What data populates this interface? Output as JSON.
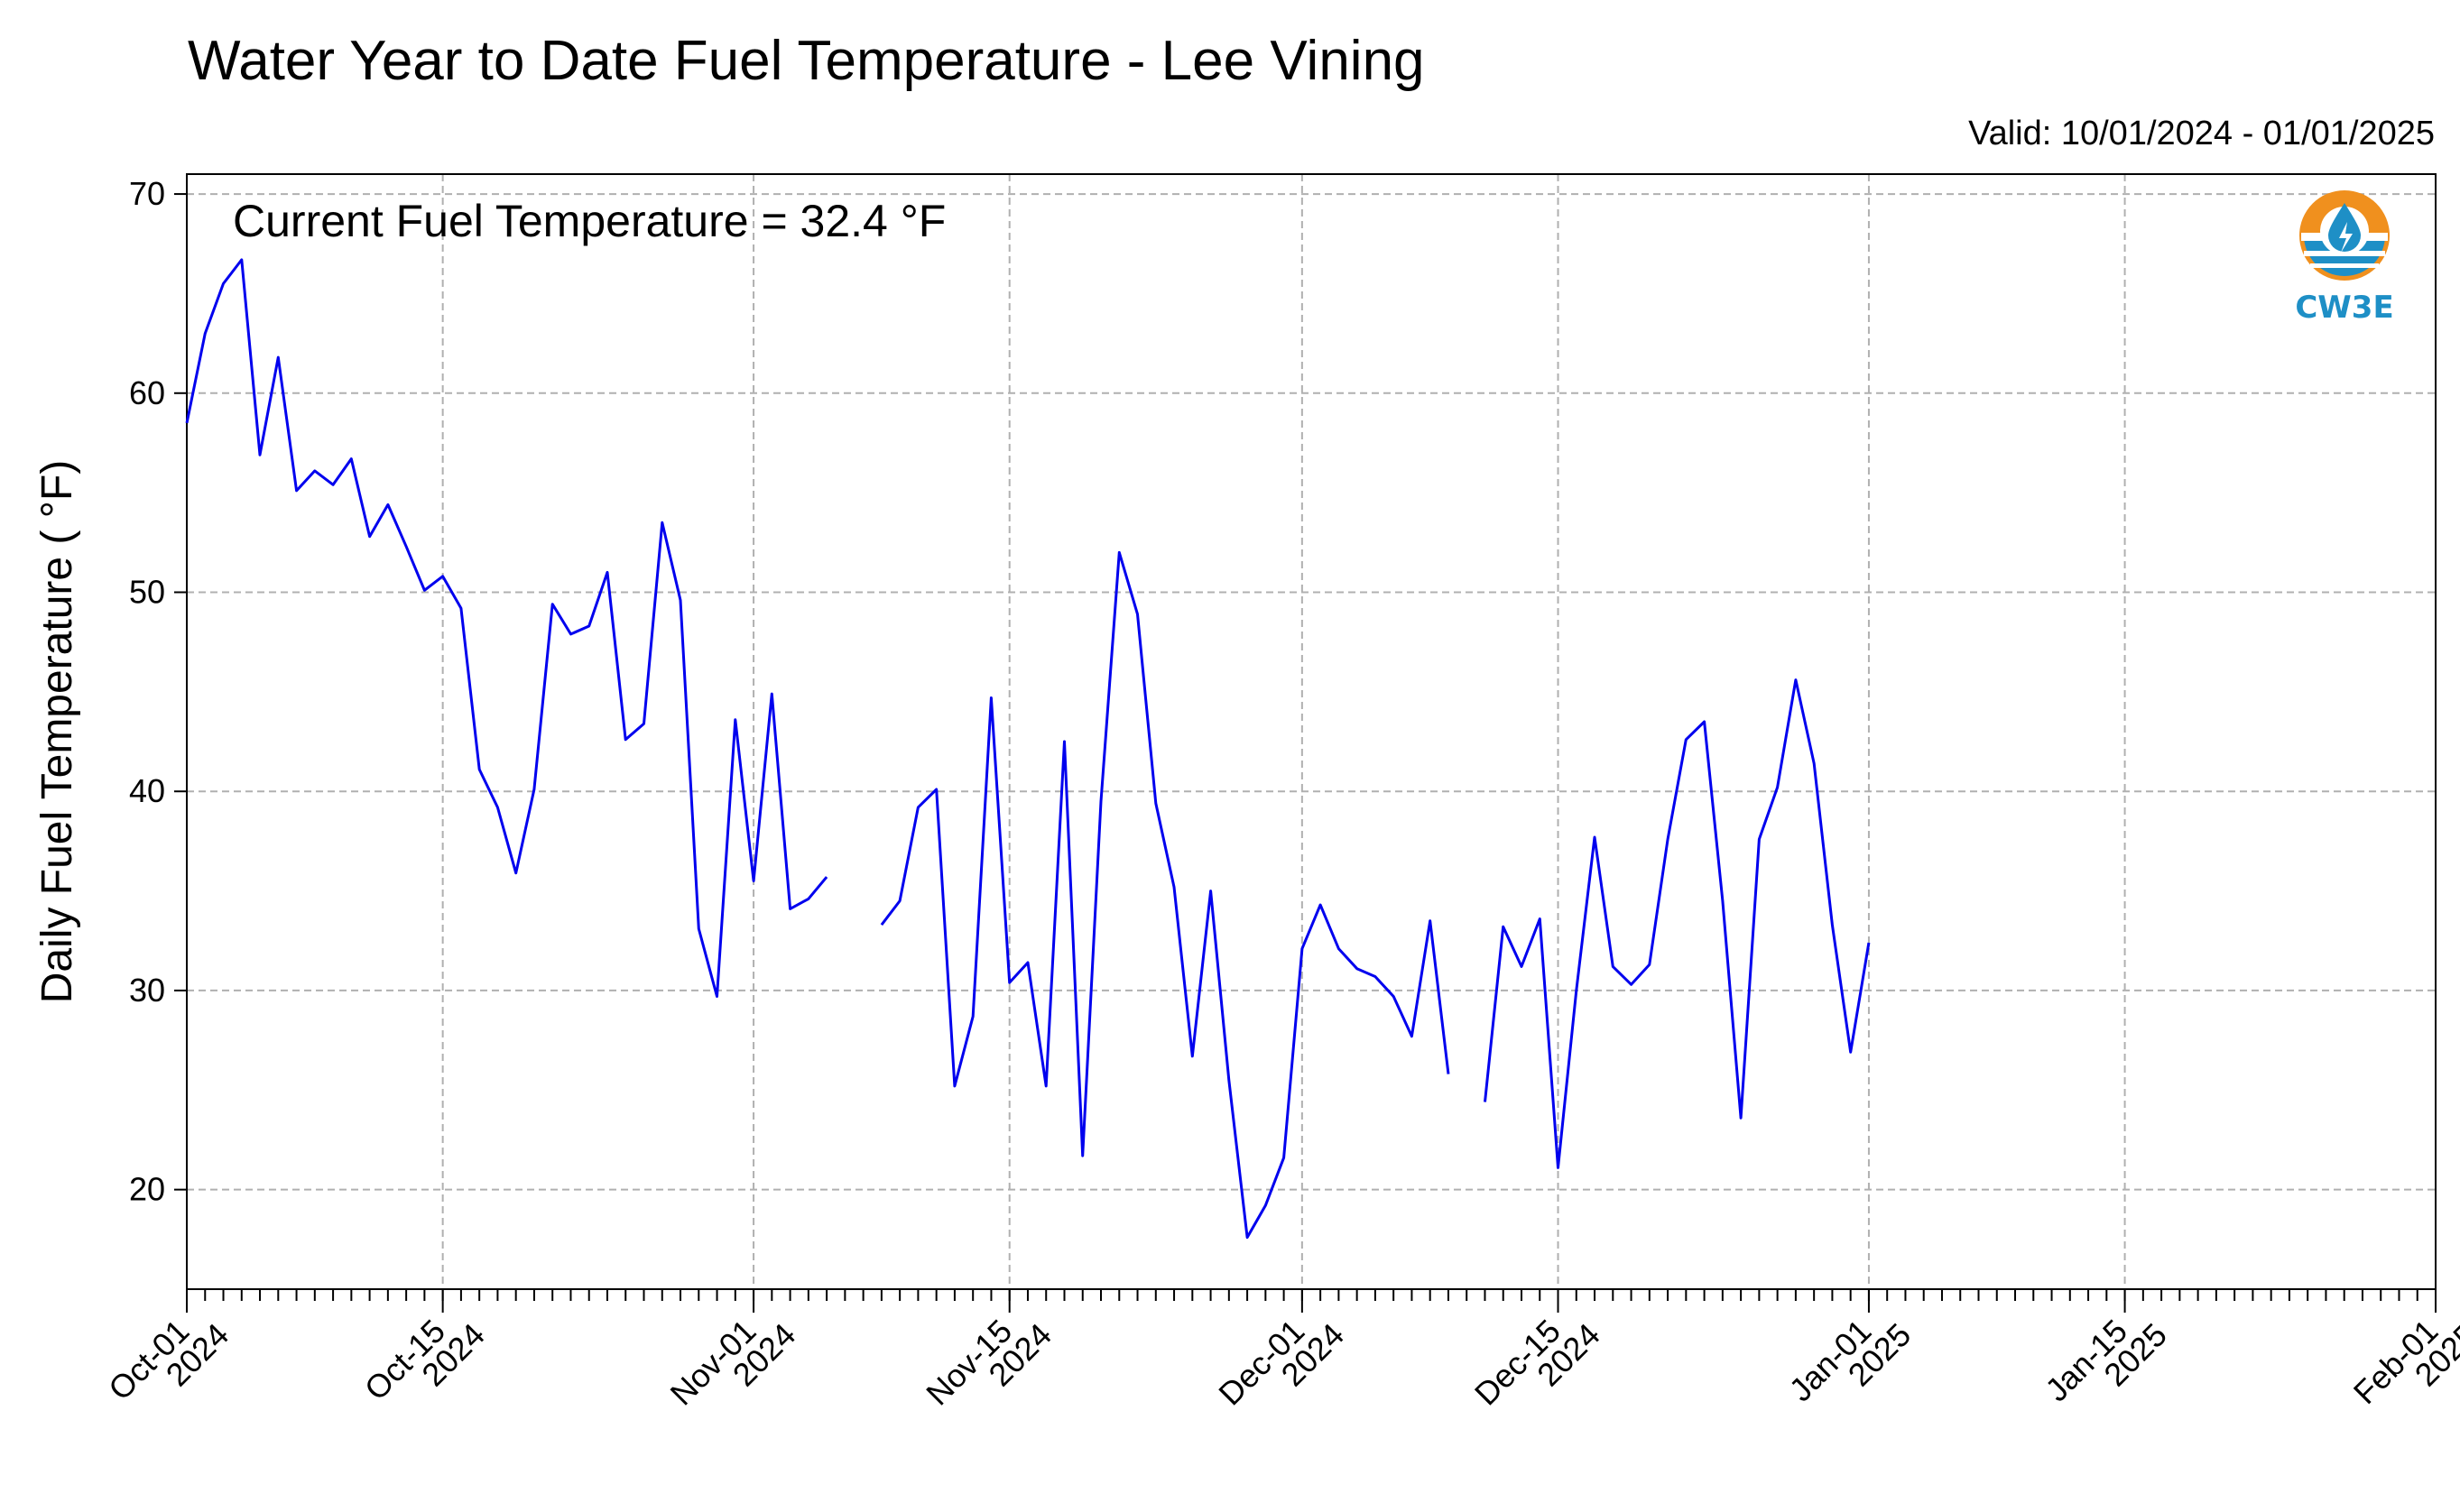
{
  "chart_data": {
    "type": "line",
    "title": "Water Year to Date Fuel Temperature - Lee Vining",
    "subtitle": "Valid: 10/01/2024 - 01/01/2025",
    "annotation": "Current Fuel Temperature = 32.4  °F",
    "ylabel": "Daily Fuel Temperature ( °F)",
    "xlabel": "",
    "ylim": [
      15,
      71
    ],
    "yticks": [
      20,
      30,
      40,
      50,
      60,
      70
    ],
    "xlim": [
      "2024-10-01",
      "2025-02-01"
    ],
    "xticks": [
      {
        "date": "2024-10-01",
        "label1": "Oct-01",
        "label2": "2024"
      },
      {
        "date": "2024-10-15",
        "label1": "Oct-15",
        "label2": "2024"
      },
      {
        "date": "2024-11-01",
        "label1": "Nov-01",
        "label2": "2024"
      },
      {
        "date": "2024-11-15",
        "label1": "Nov-15",
        "label2": "2024"
      },
      {
        "date": "2024-12-01",
        "label1": "Dec-01",
        "label2": "2024"
      },
      {
        "date": "2024-12-15",
        "label1": "Dec-15",
        "label2": "2024"
      },
      {
        "date": "2025-01-01",
        "label1": "Jan-01",
        "label2": "2025"
      },
      {
        "date": "2025-01-15",
        "label1": "Jan-15",
        "label2": "2025"
      },
      {
        "date": "2025-02-01",
        "label1": "Feb-01",
        "label2": "2025"
      }
    ],
    "grid": true,
    "logo": "cw3e-logo",
    "logo_text": "CW3E",
    "series": [
      {
        "color": "#0000ee",
        "points": [
          [
            "2024-10-01",
            58.5
          ],
          [
            "2024-10-02",
            63.0
          ],
          [
            "2024-10-03",
            65.5
          ],
          [
            "2024-10-04",
            66.7
          ],
          [
            "2024-10-05",
            56.9
          ],
          [
            "2024-10-06",
            61.8
          ],
          [
            "2024-10-07",
            55.1
          ],
          [
            "2024-10-08",
            56.1
          ],
          [
            "2024-10-09",
            55.4
          ],
          [
            "2024-10-10",
            56.7
          ],
          [
            "2024-10-11",
            52.8
          ],
          [
            "2024-10-12",
            54.4
          ],
          [
            "2024-10-13",
            52.3
          ],
          [
            "2024-10-14",
            50.1
          ],
          [
            "2024-10-15",
            50.8
          ],
          [
            "2024-10-16",
            49.2
          ],
          [
            "2024-10-17",
            41.1
          ],
          [
            "2024-10-18",
            39.2
          ],
          [
            "2024-10-19",
            35.9
          ],
          [
            "2024-10-20",
            40.1
          ],
          [
            "2024-10-21",
            49.4
          ],
          [
            "2024-10-22",
            47.9
          ],
          [
            "2024-10-23",
            48.3
          ],
          [
            "2024-10-24",
            51.0
          ],
          [
            "2024-10-25",
            42.6
          ],
          [
            "2024-10-26",
            43.4
          ],
          [
            "2024-10-27",
            53.5
          ],
          [
            "2024-10-28",
            49.6
          ],
          [
            "2024-10-29",
            33.1
          ],
          [
            "2024-10-30",
            29.7
          ],
          [
            "2024-10-31",
            43.6
          ],
          [
            "2024-11-01",
            35.5
          ],
          [
            "2024-11-02",
            44.9
          ],
          [
            "2024-11-03",
            34.1
          ],
          [
            "2024-11-04",
            34.6
          ],
          [
            "2024-11-05",
            35.7
          ],
          [
            "2024-11-06",
            null
          ],
          [
            "2024-11-07",
            null
          ],
          [
            "2024-11-08",
            33.3
          ],
          [
            "2024-11-09",
            34.5
          ],
          [
            "2024-11-10",
            39.2
          ],
          [
            "2024-11-11",
            40.1
          ],
          [
            "2024-11-12",
            25.2
          ],
          [
            "2024-11-13",
            28.7
          ],
          [
            "2024-11-14",
            44.7
          ],
          [
            "2024-11-15",
            30.4
          ],
          [
            "2024-11-16",
            31.4
          ],
          [
            "2024-11-17",
            25.2
          ],
          [
            "2024-11-18",
            42.5
          ],
          [
            "2024-11-19",
            21.7
          ],
          [
            "2024-11-20",
            39.5
          ],
          [
            "2024-11-21",
            52.0
          ],
          [
            "2024-11-22",
            48.9
          ],
          [
            "2024-11-23",
            39.4
          ],
          [
            "2024-11-24",
            35.2
          ],
          [
            "2024-11-25",
            26.7
          ],
          [
            "2024-11-26",
            35.0
          ],
          [
            "2024-11-27",
            25.5
          ],
          [
            "2024-11-28",
            17.6
          ],
          [
            "2024-11-29",
            19.2
          ],
          [
            "2024-11-30",
            21.6
          ],
          [
            "2024-12-01",
            32.1
          ],
          [
            "2024-12-02",
            34.3
          ],
          [
            "2024-12-03",
            32.1
          ],
          [
            "2024-12-04",
            31.1
          ],
          [
            "2024-12-05",
            30.7
          ],
          [
            "2024-12-06",
            29.7
          ],
          [
            "2024-12-07",
            27.7
          ],
          [
            "2024-12-08",
            33.5
          ],
          [
            "2024-12-09",
            25.8
          ],
          [
            "2024-12-10",
            null
          ],
          [
            "2024-12-11",
            24.4
          ],
          [
            "2024-12-12",
            33.2
          ],
          [
            "2024-12-13",
            31.2
          ],
          [
            "2024-12-14",
            33.6
          ],
          [
            "2024-12-15",
            21.1
          ],
          [
            "2024-12-16",
            30.0
          ],
          [
            "2024-12-17",
            37.7
          ],
          [
            "2024-12-18",
            31.2
          ],
          [
            "2024-12-19",
            30.3
          ],
          [
            "2024-12-20",
            31.3
          ],
          [
            "2024-12-21",
            37.6
          ],
          [
            "2024-12-22",
            42.6
          ],
          [
            "2024-12-23",
            43.5
          ],
          [
            "2024-12-24",
            34.5
          ],
          [
            "2024-12-25",
            23.6
          ],
          [
            "2024-12-26",
            37.6
          ],
          [
            "2024-12-27",
            40.2
          ],
          [
            "2024-12-28",
            45.6
          ],
          [
            "2024-12-29",
            41.4
          ],
          [
            "2024-12-30",
            33.3
          ],
          [
            "2024-12-31",
            26.9
          ],
          [
            "2025-01-01",
            32.4
          ]
        ]
      }
    ]
  }
}
